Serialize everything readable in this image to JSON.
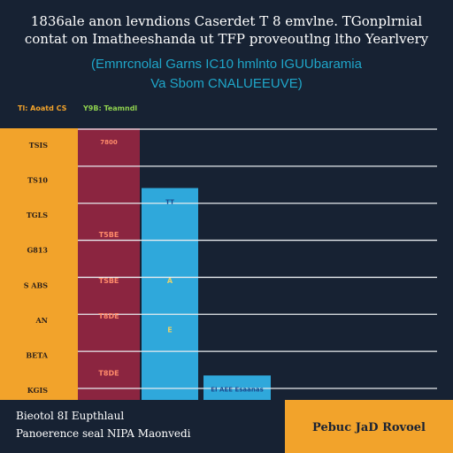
{
  "header": {
    "title_line1": "1836ale anon levndions Caserdet T 8 emvlne. TGonplrnial",
    "title_line2": "contat on Imatheeshanda ut TFP proveoutlng ltho Yearlvery",
    "subtitle_line1": "(Emnrcnolal Garns IC10 hmlnto IGUUbaramia",
    "subtitle_line2": "Va Sbom CNALUEEUVE)"
  },
  "legend": [
    {
      "label": "Tl: Aoatd CS",
      "color": "#f2a32b"
    },
    {
      "label": "Y9B: Teamndl",
      "color": "#8fd14f"
    }
  ],
  "chart_data": {
    "type": "bar",
    "title": "",
    "xlabel": "",
    "ylabel": "",
    "ytick_labels": [
      "TSIS",
      "TS10",
      "TGLS",
      "G813",
      "S ABS",
      "AN",
      "BETA",
      "KGIS"
    ],
    "series": [
      {
        "color": "#f2a32b",
        "value": 100,
        "label": ""
      },
      {
        "color": "#8b2540",
        "value": 100,
        "label": "7800"
      },
      {
        "color": "#2fa8db",
        "value": 78,
        "label": "TT"
      },
      {
        "color": "#2fa8db",
        "value": 9,
        "label": "EI AEE Esaanas"
      }
    ],
    "inner_labels": [
      {
        "series": 1,
        "text": "T5BE",
        "value": 60
      },
      {
        "series": 1,
        "text": "TSBE",
        "value": 43
      },
      {
        "series": 1,
        "text": "T8DE",
        "value": 30
      },
      {
        "series": 1,
        "text": "T8DE",
        "value": 9
      },
      {
        "series": 2,
        "text": "A",
        "value": 43
      },
      {
        "series": 2,
        "text": "E",
        "value": 25
      }
    ],
    "ylim": [
      0,
      100
    ],
    "grid": true
  },
  "footer": {
    "left_line1": "Bieotol 8I Eupthlaul",
    "left_line2": "Panoerence seal NIPA Maonvedi",
    "right_label": "Pebuc JaD Rovoel"
  }
}
